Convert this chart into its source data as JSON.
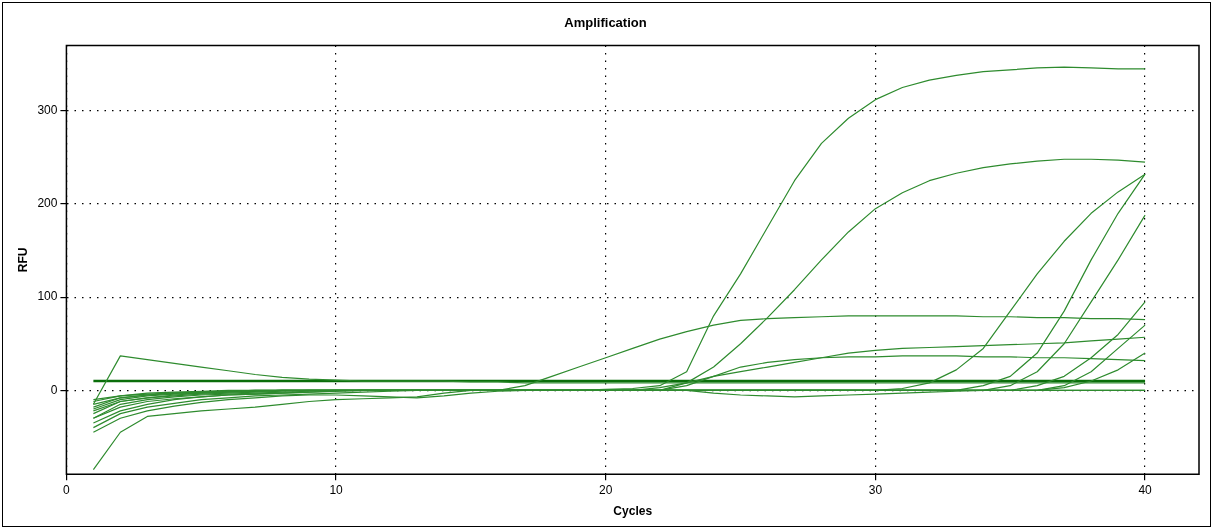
{
  "chart_data": {
    "type": "line",
    "title": "Amplification",
    "xlabel": "Cycles",
    "ylabel": "RFU",
    "x": [
      1,
      2,
      3,
      4,
      5,
      6,
      7,
      8,
      9,
      10,
      11,
      12,
      13,
      14,
      15,
      16,
      17,
      18,
      19,
      20,
      21,
      22,
      23,
      24,
      25,
      26,
      27,
      28,
      29,
      30,
      31,
      32,
      33,
      34,
      35,
      36,
      37,
      38,
      39,
      40
    ],
    "xlim": [
      0,
      42
    ],
    "xticks": [
      0,
      10,
      20,
      30,
      40
    ],
    "ylim": [
      -90,
      370
    ],
    "yticks": [
      0,
      100,
      200,
      300
    ],
    "grid": true,
    "legend": false,
    "marker": "none",
    "line_style": "solid",
    "series": [
      {
        "color": "#2e8b2e",
        "values": [
          -15,
          -8,
          -5,
          -3,
          -2,
          -1,
          0,
          0,
          0,
          0,
          0,
          0,
          0,
          0,
          0,
          0,
          0,
          0,
          0,
          1,
          2,
          5,
          20,
          80,
          125,
          175,
          225,
          265,
          292,
          312,
          325,
          333,
          338,
          342,
          344,
          346,
          347,
          346,
          345,
          345
        ]
      },
      {
        "color": "#2e8b2e",
        "values": [
          -20,
          -10,
          -6,
          -4,
          -3,
          -2,
          -1,
          0,
          0,
          0,
          0,
          0,
          0,
          0,
          0,
          0,
          0,
          0,
          0,
          0,
          0,
          0,
          8,
          25,
          50,
          78,
          108,
          140,
          170,
          195,
          212,
          225,
          233,
          239,
          243,
          246,
          248,
          248,
          247,
          245
        ]
      },
      {
        "color": "#2e8b2e",
        "values": [
          -25,
          -12,
          -8,
          -5,
          -3,
          -2,
          -1,
          0,
          0,
          0,
          0,
          0,
          0,
          0,
          0,
          0,
          0,
          0,
          0,
          0,
          0,
          0,
          0,
          0,
          0,
          0,
          0,
          0,
          0,
          0,
          2,
          8,
          22,
          45,
          85,
          125,
          160,
          190,
          213,
          232
        ]
      },
      {
        "color": "#2e8b2e",
        "values": [
          -30,
          -15,
          -10,
          -7,
          -5,
          -4,
          -3,
          -2,
          -1,
          0,
          0,
          0,
          0,
          0,
          0,
          0,
          0,
          0,
          0,
          0,
          0,
          0,
          0,
          0,
          0,
          0,
          0,
          0,
          0,
          0,
          0,
          0,
          0,
          5,
          15,
          40,
          85,
          140,
          190,
          232
        ]
      },
      {
        "color": "#2e8b2e",
        "values": [
          -18,
          -8,
          -5,
          -3,
          -2,
          -1,
          0,
          0,
          0,
          0,
          0,
          0,
          0,
          0,
          0,
          0,
          0,
          0,
          0,
          0,
          0,
          0,
          0,
          0,
          0,
          0,
          0,
          0,
          0,
          0,
          0,
          0,
          0,
          0,
          5,
          20,
          50,
          95,
          140,
          188
        ]
      },
      {
        "color": "#2e8b2e",
        "values": [
          -12,
          -6,
          -3,
          -2,
          -1,
          0,
          0,
          0,
          0,
          0,
          0,
          0,
          0,
          0,
          0,
          0,
          5,
          15,
          25,
          35,
          45,
          55,
          63,
          70,
          75,
          77,
          78,
          79,
          80,
          80,
          80,
          80,
          80,
          79,
          79,
          78,
          78,
          77,
          77,
          76
        ]
      },
      {
        "color": "#2e8b2e",
        "values": [
          -35,
          -22,
          -15,
          -10,
          -7,
          -5,
          -4,
          -3,
          -2,
          -1,
          0,
          0,
          0,
          0,
          0,
          0,
          0,
          0,
          0,
          0,
          0,
          3,
          8,
          15,
          20,
          25,
          30,
          35,
          40,
          43,
          45,
          46,
          47,
          48,
          49,
          50,
          51,
          53,
          55,
          57
        ]
      },
      {
        "color": "#2e8b2e",
        "values": [
          -40,
          -25,
          -18,
          -14,
          -10,
          -8,
          -6,
          -5,
          -4,
          -3,
          -2,
          -1,
          0,
          0,
          0,
          0,
          0,
          0,
          0,
          0,
          0,
          0,
          5,
          15,
          25,
          30,
          33,
          35,
          36,
          36,
          37,
          37,
          37,
          36,
          36,
          35,
          35,
          34,
          33,
          32
        ]
      },
      {
        "color": "#2e8b2e",
        "values": [
          -15,
          37,
          33,
          29,
          25,
          21,
          17,
          14,
          12,
          11,
          10,
          10,
          10,
          10,
          9,
          9,
          8,
          8,
          8,
          8,
          8,
          8,
          8,
          8,
          8,
          8,
          8,
          8,
          8,
          8,
          8,
          8,
          8,
          8,
          8,
          8,
          8,
          8,
          8,
          8
        ]
      },
      {
        "color": "#2e8b2e",
        "values": [
          -85,
          -45,
          -28,
          -25,
          -22,
          -20,
          -18,
          -15,
          -12,
          -10,
          -9,
          -8,
          -7,
          -3,
          0,
          0,
          0,
          0,
          0,
          0,
          0,
          0,
          0,
          0,
          0,
          0,
          0,
          0,
          0,
          0,
          0,
          0,
          0,
          0,
          0,
          5,
          15,
          35,
          60,
          95
        ]
      },
      {
        "color": "#2e8b2e",
        "values": [
          -30,
          -18,
          -12,
          -9,
          -7,
          -5,
          -4,
          -3,
          -2,
          -1,
          0,
          0,
          0,
          0,
          0,
          0,
          0,
          0,
          0,
          0,
          0,
          0,
          0,
          0,
          0,
          0,
          0,
          0,
          0,
          0,
          0,
          0,
          0,
          0,
          0,
          0,
          5,
          20,
          45,
          70
        ]
      },
      {
        "color": "#2e8b2e",
        "values": [
          -22,
          -12,
          -8,
          -6,
          -4,
          -3,
          -2,
          -1,
          0,
          0,
          0,
          0,
          0,
          0,
          0,
          0,
          0,
          0,
          0,
          0,
          0,
          0,
          0,
          0,
          0,
          0,
          0,
          0,
          0,
          0,
          0,
          0,
          0,
          0,
          0,
          0,
          3,
          10,
          22,
          40
        ]
      },
      {
        "color": "#2e8b2e",
        "values": [
          -10,
          -6,
          -4,
          -3,
          -2,
          -1,
          -1,
          0,
          0,
          0,
          0,
          0,
          0,
          0,
          0,
          0,
          0,
          0,
          0,
          0,
          0,
          0,
          0,
          -3,
          -5,
          -6,
          -7,
          -6,
          -5,
          -4,
          -3,
          -2,
          -1,
          0,
          0,
          0,
          0,
          0,
          0,
          0
        ]
      },
      {
        "color": "#2e8b2e",
        "values": [
          -45,
          -30,
          -22,
          -17,
          -13,
          -10,
          -8,
          -6,
          -5,
          -5,
          -6,
          -7,
          -8,
          -6,
          -3,
          -1,
          0,
          0,
          0,
          0,
          0,
          0,
          0,
          0,
          0,
          0,
          0,
          0,
          0,
          0,
          0,
          0,
          0,
          0,
          0,
          0,
          0,
          0,
          0,
          0
        ]
      },
      {
        "color": "#0a6e0a",
        "x": [
          1,
          40
        ],
        "values": [
          10,
          10
        ]
      }
    ]
  }
}
